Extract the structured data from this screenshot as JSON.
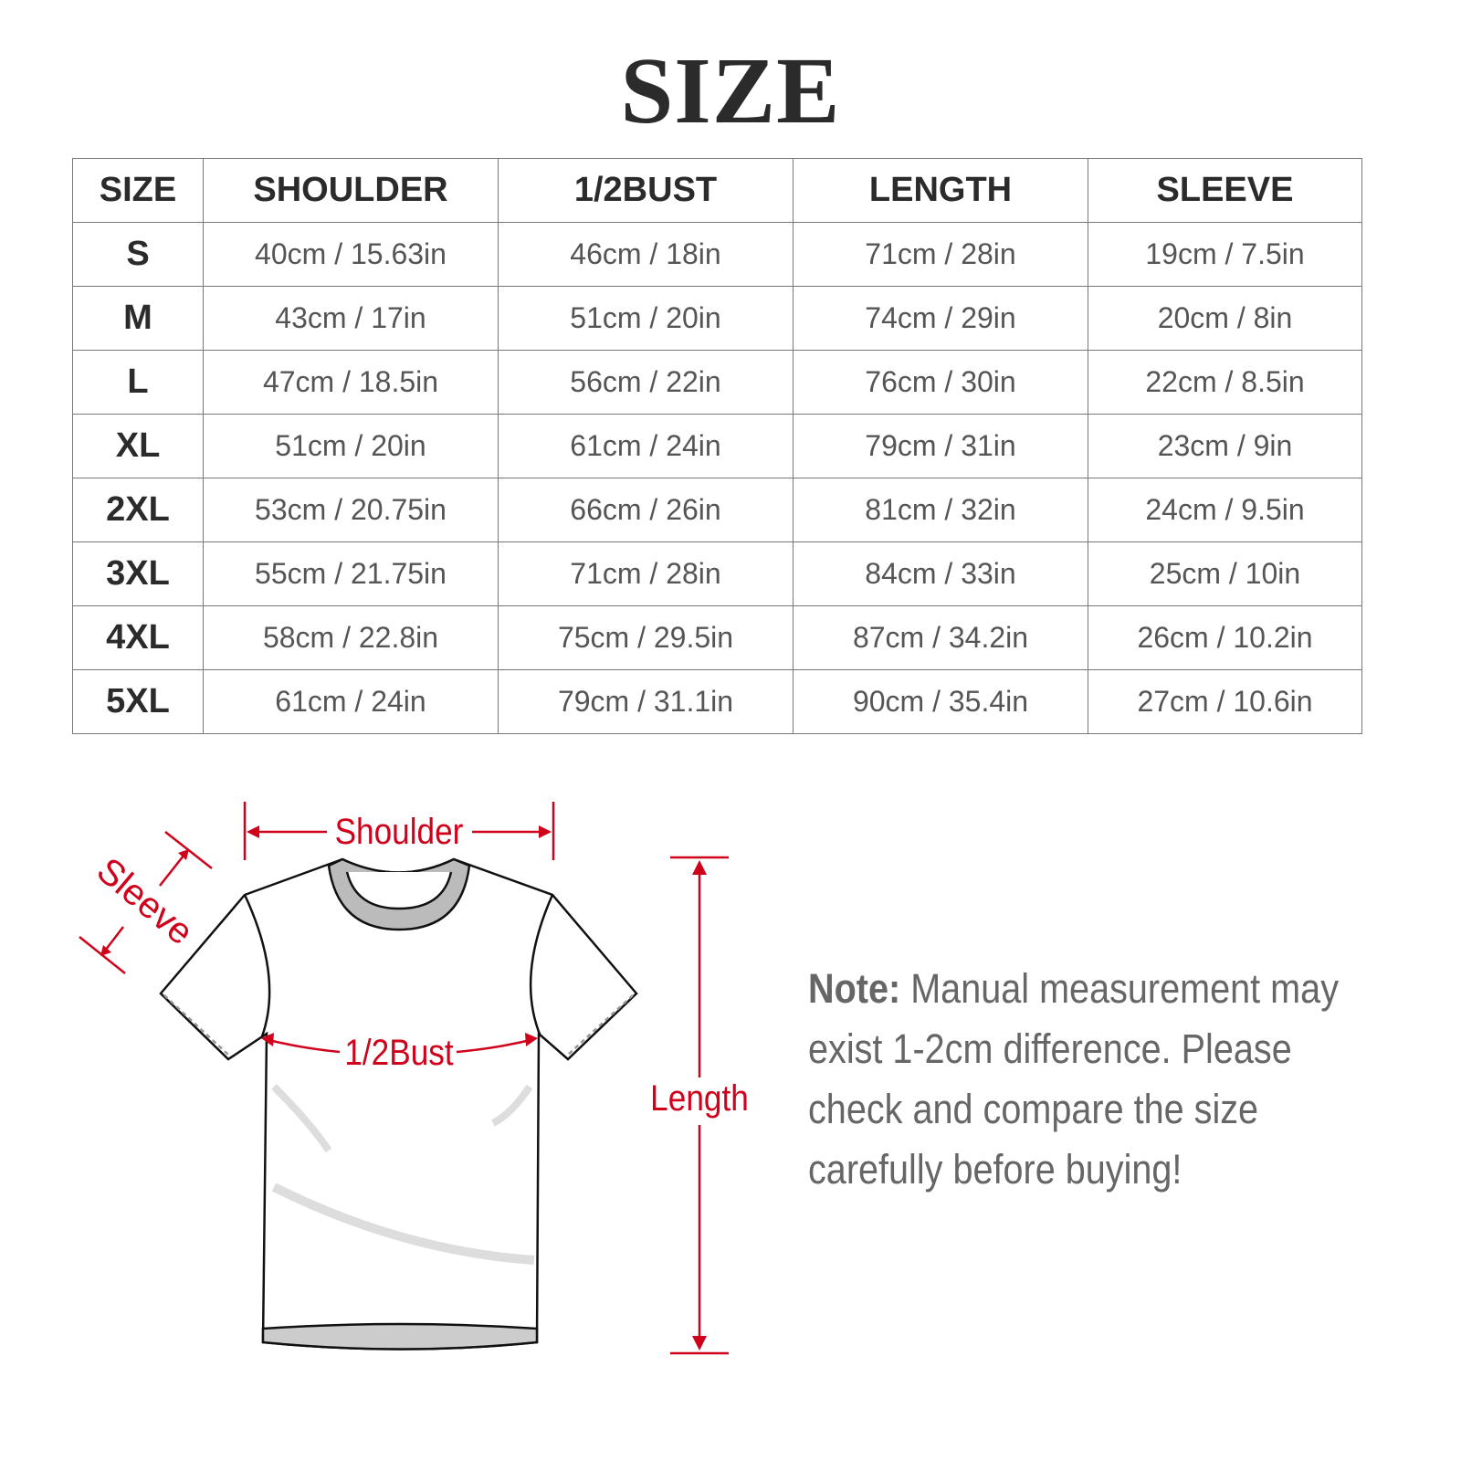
{
  "title": "SIZE",
  "table": {
    "headers": [
      "SIZE",
      "SHOULDER",
      "1/2BUST",
      "LENGTH",
      "SLEEVE"
    ],
    "rows": [
      [
        "S",
        "40cm / 15.63in",
        "46cm / 18in",
        "71cm / 28in",
        "19cm / 7.5in"
      ],
      [
        "M",
        "43cm / 17in",
        "51cm / 20in",
        "74cm / 29in",
        "20cm / 8in"
      ],
      [
        "L",
        "47cm / 18.5in",
        "56cm / 22in",
        "76cm / 30in",
        "22cm / 8.5in"
      ],
      [
        "XL",
        "51cm / 20in",
        "61cm / 24in",
        "79cm / 31in",
        "23cm / 9in"
      ],
      [
        "2XL",
        "53cm / 20.75in",
        "66cm / 26in",
        "81cm / 32in",
        "24cm / 9.5in"
      ],
      [
        "3XL",
        "55cm / 21.75in",
        "71cm / 28in",
        "84cm / 33in",
        "25cm / 10in"
      ],
      [
        "4XL",
        "58cm / 22.8in",
        "75cm / 29.5in",
        "87cm / 34.2in",
        "26cm / 10.2in"
      ],
      [
        "5XL",
        "61cm / 24in",
        "79cm / 31.1in",
        "90cm / 35.4in",
        "27cm / 10.6in"
      ]
    ]
  },
  "diagram": {
    "labels": {
      "shoulder": "Shoulder",
      "sleeve": "Sleeve",
      "bust": "1/2Bust",
      "length": "Length"
    },
    "accent_color": "#d0021b"
  },
  "note": {
    "label": "Note:",
    "text": " Manual measurement may exist 1-2cm difference. Please check and compare the size carefully before buying!"
  }
}
